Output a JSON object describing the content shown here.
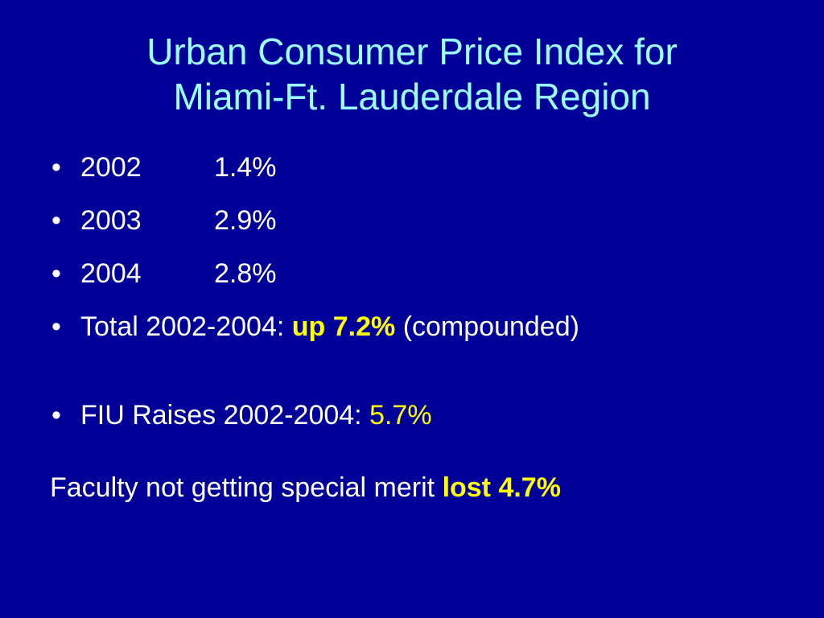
{
  "slide": {
    "title_line1": "Urban Consumer Price Index for",
    "title_line2": "Miami-Ft. Lauderdale Region",
    "bullet_symbol": "•",
    "cpi_rows": [
      {
        "year": "2002",
        "value": "1.4%"
      },
      {
        "year": "2003",
        "value": "2.9%"
      },
      {
        "year": "2004",
        "value": "2.8%"
      }
    ],
    "total": {
      "label": "Total 2002-2004: ",
      "highlight": "up 7.2%",
      "suffix": " (compounded)"
    },
    "fiu_raises": {
      "label": "FIU Raises 2002-2004:  ",
      "value": "5.7%"
    },
    "faculty_note": {
      "text": "Faculty not getting special merit ",
      "highlight": "lost 4.7%"
    }
  },
  "colors": {
    "background": "#000099",
    "title": "#99ffff",
    "body_text": "#ffffff",
    "highlight": "#ffff00"
  }
}
